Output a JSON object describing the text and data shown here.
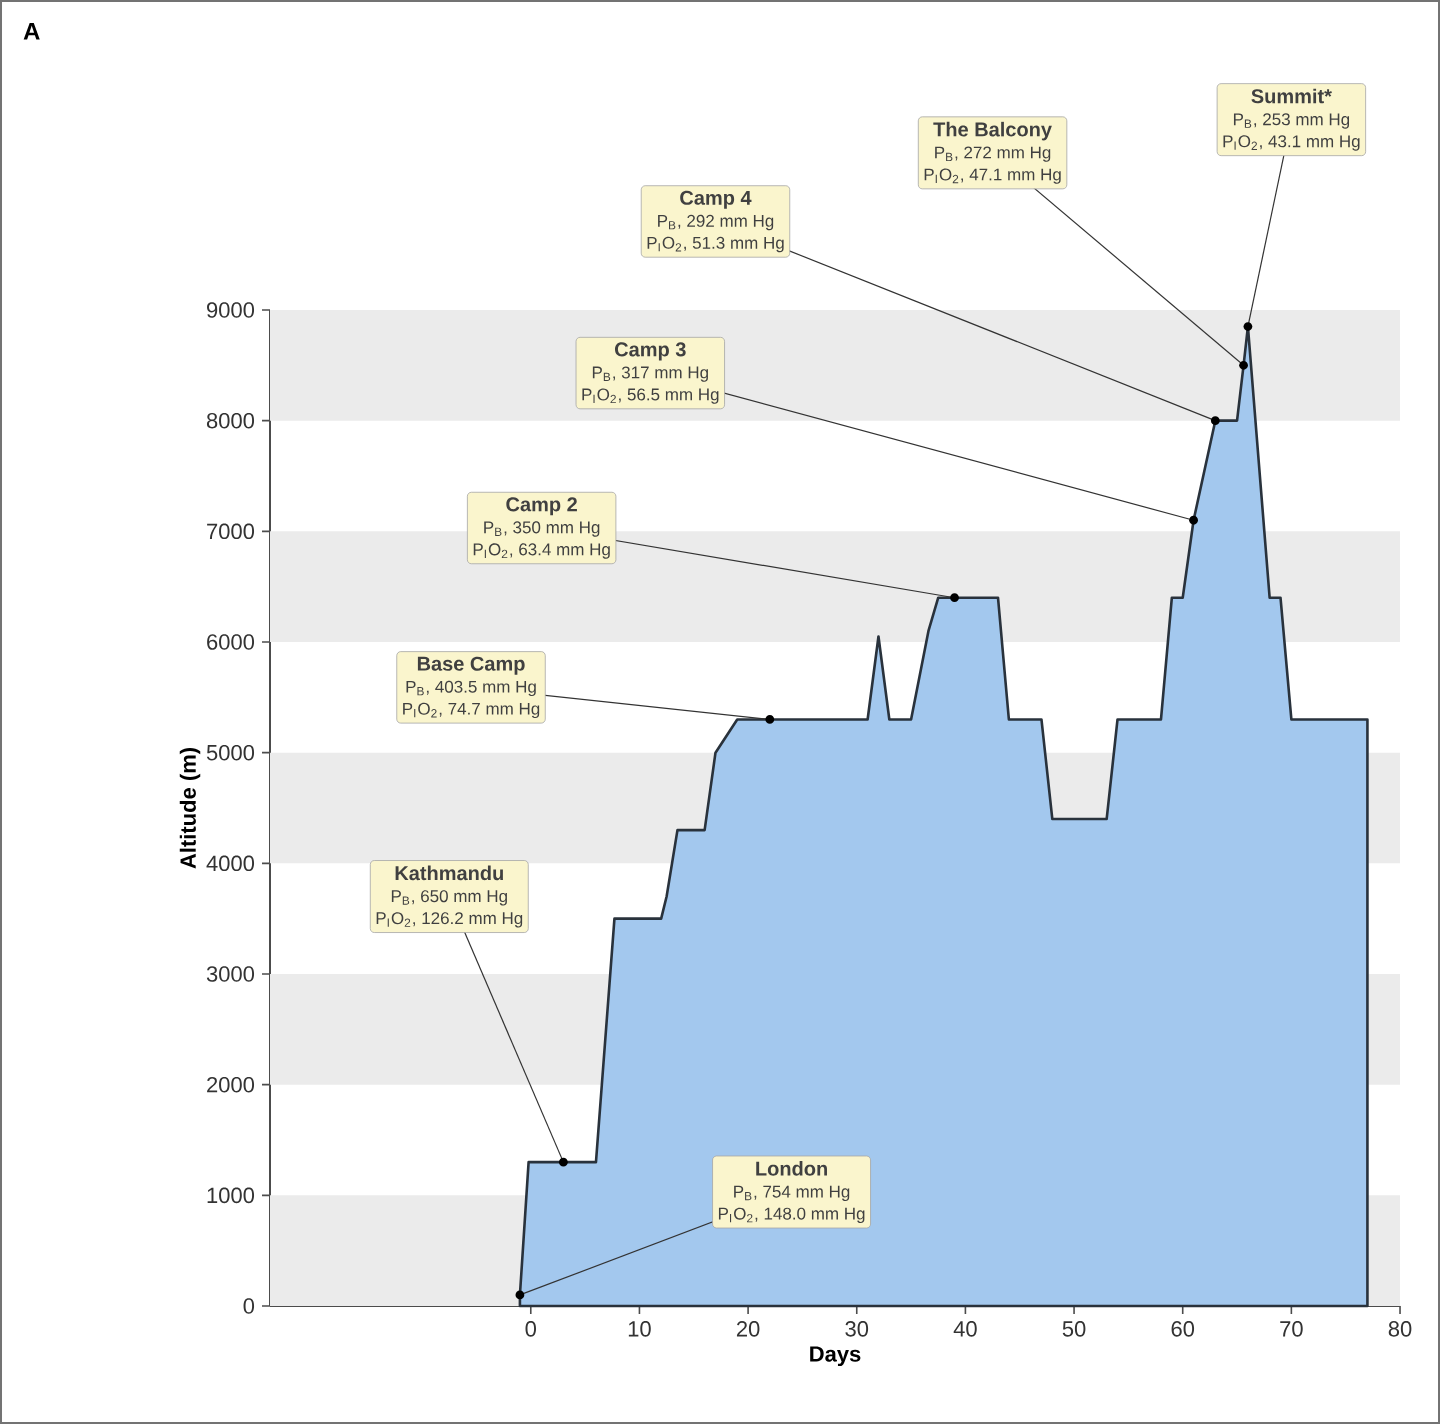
{
  "chart_data": {
    "type": "area",
    "xlabel": "Days",
    "ylabel": "Altitude (m)",
    "xlim": [
      -24,
      80
    ],
    "xticks": [
      0,
      10,
      20,
      30,
      40,
      50,
      60,
      70,
      80
    ],
    "ylim": [
      0,
      9000
    ],
    "yticks": [
      0,
      1000,
      2000,
      3000,
      4000,
      5000,
      6000,
      7000,
      8000,
      9000
    ],
    "grid": false,
    "bands": [
      {
        "axis": "y",
        "from": 0,
        "to": 1000,
        "color": "#ebebeb"
      },
      {
        "axis": "y",
        "from": 2000,
        "to": 3000,
        "color": "#ebebeb"
      },
      {
        "axis": "y",
        "from": 4000,
        "to": 5000,
        "color": "#ebebeb"
      },
      {
        "axis": "y",
        "from": 6000,
        "to": 7000,
        "color": "#ebebeb"
      },
      {
        "axis": "y",
        "from": 8000,
        "to": 9000,
        "color": "#ebebeb"
      }
    ],
    "series": [
      {
        "color": "#a3c8ee",
        "x": [
          -1,
          -0.2,
          3,
          6,
          7.7,
          12,
          12.5,
          13.5,
          14,
          16,
          17,
          19,
          22,
          31,
          32,
          33,
          35,
          36.6,
          37.5,
          39,
          43,
          44,
          47,
          48,
          53,
          54,
          58,
          59,
          60,
          61,
          63,
          65,
          65.6,
          66,
          68,
          69,
          70,
          77
        ],
        "values": [
          100,
          1300,
          1300,
          1300,
          3500,
          3500,
          3700,
          4300,
          4300,
          4300,
          5000,
          5300,
          5300,
          5300,
          6050,
          5300,
          5300,
          6100,
          6400,
          6400,
          6400,
          5300,
          5300,
          4400,
          4400,
          5300,
          5300,
          6400,
          6400,
          7100,
          8000,
          8000,
          8500,
          8850,
          6400,
          6400,
          5300,
          5300
        ]
      }
    ],
    "annotations": [
      "A",
      {
        "text": "London",
        "x": -1,
        "y": 100
      },
      {
        "text": "P$_{B}$, 754 mm Hg",
        "x": -1,
        "y": 100
      },
      {
        "text": "P$_{I}$O$_{2}$, 148.0 mm Hg",
        "x": -1,
        "y": 100
      },
      {
        "text": "Kathmandu",
        "x": 3,
        "y": 1300
      },
      {
        "text": "P$_{B}$, 650 mm Hg",
        "x": 3,
        "y": 1300
      },
      {
        "text": "P$_{I}$O$_{2}$, 126.2 mm Hg",
        "x": 3,
        "y": 1300
      },
      {
        "text": "Base Camp",
        "x": 22,
        "y": 5300
      },
      {
        "text": "P$_{B}$, 403.5 mm Hg",
        "x": 22,
        "y": 5300
      },
      {
        "text": "P$_{I}$O$_{2}$, 74.7 mm Hg",
        "x": 22,
        "y": 5300
      },
      {
        "text": "Camp 2",
        "x": 39,
        "y": 6400
      },
      {
        "text": "P$_{B}$, 350 mm Hg",
        "x": 39,
        "y": 6400
      },
      {
        "text": "P$_{I}$O$_{2}$, 63.4 mm Hg",
        "x": 39,
        "y": 6400
      },
      {
        "text": "Camp 3",
        "x": 61,
        "y": 7100
      },
      {
        "text": "P$_{B}$, 317 mm Hg",
        "x": 61,
        "y": 7100
      },
      {
        "text": "P$_{I}$O$_{2}$, 56.5 mm Hg",
        "x": 61,
        "y": 7100
      },
      {
        "text": "Camp 4",
        "x": 63,
        "y": 8000
      },
      {
        "text": "P$_{B}$, 292 mm Hg",
        "x": 63,
        "y": 8000
      },
      {
        "text": "P$_{I}$O$_{2}$, 51.3 mm Hg",
        "x": 63,
        "y": 8000
      },
      {
        "text": "The Balcony",
        "x": 65.6,
        "y": 8500
      },
      {
        "text": "P$_{B}$, 272 mm Hg",
        "x": 65.6,
        "y": 8500
      },
      {
        "text": "P$_{I}$O$_{2}$, 47.1 mm Hg",
        "x": 65.6,
        "y": 8500
      },
      {
        "text": "Summit*",
        "x": 66,
        "y": 8850
      },
      {
        "text": "P$_{B}$, 253 mm Hg",
        "x": 66,
        "y": 8850
      },
      {
        "text": "P$_{I}$O$_{2}$, 43.1 mm Hg",
        "x": 66,
        "y": 8850
      }
    ]
  }
}
